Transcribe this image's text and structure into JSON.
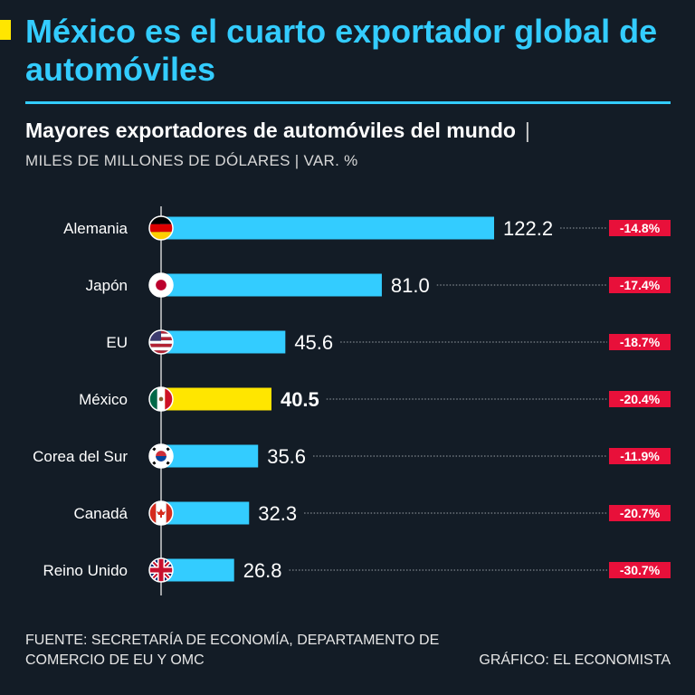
{
  "header": {
    "title": "México es el cuarto exportador global de automóviles",
    "subtitle": "Mayores exportadores de automóviles del mundo",
    "subtitle_separator": "|",
    "units": "MILES DE MILLONES DE DÓLARES | VAR. %"
  },
  "colors": {
    "background": "#131c26",
    "accent": "#33ccff",
    "highlight": "#ffe600",
    "negative_badge": "#e8103a"
  },
  "chart_data": {
    "type": "bar",
    "orientation": "horizontal",
    "categories": [
      "Alemania",
      "Japón",
      "EU",
      "México",
      "Corea del Sur",
      "Canadá",
      "Reino Unido"
    ],
    "values": [
      122.2,
      81.0,
      45.6,
      40.5,
      35.6,
      32.3,
      26.8
    ],
    "value_labels": [
      "122.2",
      "81.0",
      "45.6",
      "40.5",
      "35.6",
      "32.3",
      "26.8"
    ],
    "change_labels": [
      "-14.8%",
      "-17.4%",
      "-18.7%",
      "-20.4%",
      "-11.9%",
      "-20.7%",
      "-30.7%"
    ],
    "flag_icons": [
      "germany-flag-icon",
      "japan-flag-icon",
      "usa-flag-icon",
      "mexico-flag-icon",
      "south-korea-flag-icon",
      "canada-flag-icon",
      "uk-flag-icon"
    ],
    "highlight": "México",
    "xlim": [
      0,
      122.2
    ],
    "grid": false
  },
  "footer": {
    "source": "FUENTE: SECRETARÍA DE ECONOMÍA, DEPARTAMENTO DE COMERCIO DE EU Y OMC",
    "credit": "GRÁFICO: EL ECONOMISTA"
  }
}
